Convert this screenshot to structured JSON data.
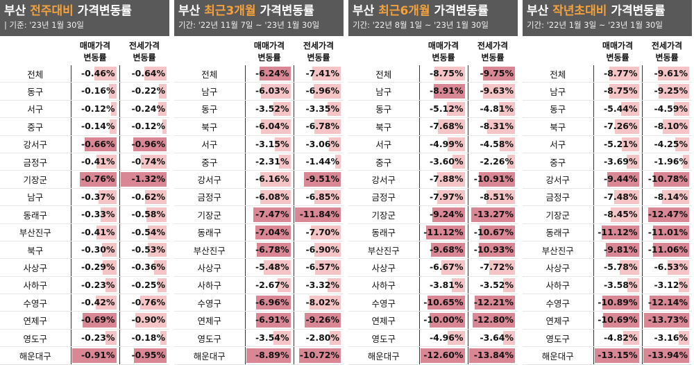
{
  "colors": {
    "header_bg": "#595959",
    "highlight": "#f4a23c",
    "bar_strong": "#d98695",
    "bar_light": "#f5c4c6"
  },
  "panels": [
    {
      "title_prefix": "부산 ",
      "title_highlight": "전주대비",
      "title_suffix": " 가격변동률",
      "period": "| 기준: '23년 1월 30일",
      "col_sale": "매매가격\n변동률",
      "col_rent": "전세가격\n변동률",
      "rows": [
        {
          "name": "전체",
          "sale": "-0.46%",
          "rent": "-0.64%",
          "sv": 0.46,
          "rv": 0.64
        },
        {
          "name": "동구",
          "sale": "-0.16%",
          "rent": "-0.22%",
          "sv": 0.16,
          "rv": 0.22
        },
        {
          "name": "서구",
          "sale": "-0.12%",
          "rent": "-0.24%",
          "sv": 0.12,
          "rv": 0.24
        },
        {
          "name": "중구",
          "sale": "-0.14%",
          "rent": "-0.12%",
          "sv": 0.14,
          "rv": 0.12
        },
        {
          "name": "강서구",
          "sale": "-0.66%",
          "rent": "-0.96%",
          "sv": 0.66,
          "rv": 0.96
        },
        {
          "name": "금정구",
          "sale": "-0.41%",
          "rent": "-0.74%",
          "sv": 0.41,
          "rv": 0.74
        },
        {
          "name": "기장군",
          "sale": "-0.76%",
          "rent": "-1.32%",
          "sv": 0.76,
          "rv": 1.32
        },
        {
          "name": "남구",
          "sale": "-0.37%",
          "rent": "-0.62%",
          "sv": 0.37,
          "rv": 0.62
        },
        {
          "name": "동래구",
          "sale": "-0.33%",
          "rent": "-0.58%",
          "sv": 0.33,
          "rv": 0.58
        },
        {
          "name": "부산진구",
          "sale": "-0.41%",
          "rent": "-0.54%",
          "sv": 0.41,
          "rv": 0.54
        },
        {
          "name": "북구",
          "sale": "-0.30%",
          "rent": "-0.53%",
          "sv": 0.3,
          "rv": 0.53
        },
        {
          "name": "사상구",
          "sale": "-0.29%",
          "rent": "-0.36%",
          "sv": 0.29,
          "rv": 0.36
        },
        {
          "name": "사하구",
          "sale": "-0.23%",
          "rent": "-0.25%",
          "sv": 0.23,
          "rv": 0.25
        },
        {
          "name": "수영구",
          "sale": "-0.42%",
          "rent": "-0.76%",
          "sv": 0.42,
          "rv": 0.76
        },
        {
          "name": "연제구",
          "sale": "-0.69%",
          "rent": "-0.90%",
          "sv": 0.69,
          "rv": 0.9
        },
        {
          "name": "영도구",
          "sale": "-0.23%",
          "rent": "-0.18%",
          "sv": 0.23,
          "rv": 0.18
        },
        {
          "name": "해운대구",
          "sale": "-0.91%",
          "rent": "-0.95%",
          "sv": 0.91,
          "rv": 0.95
        }
      ]
    },
    {
      "title_prefix": "부산 ",
      "title_highlight": "최근3개월",
      "title_suffix": " 가격변동률",
      "period": "기간: '22년 11월 7일 ~ '23년 1월 30일",
      "col_sale": "매매가격\n변동률",
      "col_rent": "전세가격\n변동률",
      "rows": [
        {
          "name": "전체",
          "sale": "-6.24%",
          "rent": "-7.41%",
          "sv": 6.24,
          "rv": 7.41
        },
        {
          "name": "남구",
          "sale": "-6.03%",
          "rent": "-6.96%",
          "sv": 6.03,
          "rv": 6.96
        },
        {
          "name": "동구",
          "sale": "-3.52%",
          "rent": "-3.35%",
          "sv": 3.52,
          "rv": 3.35
        },
        {
          "name": "북구",
          "sale": "-6.04%",
          "rent": "-6.78%",
          "sv": 6.04,
          "rv": 6.78
        },
        {
          "name": "서구",
          "sale": "-3.15%",
          "rent": "-3.06%",
          "sv": 3.15,
          "rv": 3.06
        },
        {
          "name": "중구",
          "sale": "-2.31%",
          "rent": "-1.44%",
          "sv": 2.31,
          "rv": 1.44
        },
        {
          "name": "강서구",
          "sale": "-6.16%",
          "rent": "-9.51%",
          "sv": 6.16,
          "rv": 9.51
        },
        {
          "name": "금정구",
          "sale": "-6.08%",
          "rent": "-6.85%",
          "sv": 6.08,
          "rv": 6.85
        },
        {
          "name": "기장군",
          "sale": "-7.47%",
          "rent": "-11.84%",
          "sv": 7.47,
          "rv": 11.84
        },
        {
          "name": "동래구",
          "sale": "-7.04%",
          "rent": "-7.70%",
          "sv": 7.04,
          "rv": 7.7
        },
        {
          "name": "부산진구",
          "sale": "-6.78%",
          "rent": "-6.90%",
          "sv": 6.78,
          "rv": 6.9
        },
        {
          "name": "사상구",
          "sale": "-5.48%",
          "rent": "-6.57%",
          "sv": 5.48,
          "rv": 6.57
        },
        {
          "name": "사하구",
          "sale": "-2.67%",
          "rent": "-3.32%",
          "sv": 2.67,
          "rv": 3.32
        },
        {
          "name": "수영구",
          "sale": "-6.96%",
          "rent": "-8.02%",
          "sv": 6.96,
          "rv": 8.02
        },
        {
          "name": "연제구",
          "sale": "-6.91%",
          "rent": "-9.26%",
          "sv": 6.91,
          "rv": 9.26
        },
        {
          "name": "영도구",
          "sale": "-3.54%",
          "rent": "-2.80%",
          "sv": 3.54,
          "rv": 2.8
        },
        {
          "name": "해운대구",
          "sale": "-8.89%",
          "rent": "-10.72%",
          "sv": 8.89,
          "rv": 10.72
        }
      ]
    },
    {
      "title_prefix": "부산 ",
      "title_highlight": "최근6개월",
      "title_suffix": " 가격변동률",
      "period": "기간: '22년 8월 1일 ~ '23년 1월 30일",
      "col_sale": "매매가격\n변동률",
      "col_rent": "전세가격\n변동률",
      "rows": [
        {
          "name": "전체",
          "sale": "-8.75%",
          "rent": "-9.75%",
          "sv": 8.75,
          "rv": 9.75
        },
        {
          "name": "남구",
          "sale": "-8.91%",
          "rent": "-9.63%",
          "sv": 8.91,
          "rv": 9.63
        },
        {
          "name": "동구",
          "sale": "-5.12%",
          "rent": "-4.81%",
          "sv": 5.12,
          "rv": 4.81
        },
        {
          "name": "북구",
          "sale": "-7.68%",
          "rent": "-8.31%",
          "sv": 7.68,
          "rv": 8.31
        },
        {
          "name": "서구",
          "sale": "-4.99%",
          "rent": "-4.58%",
          "sv": 4.99,
          "rv": 4.58
        },
        {
          "name": "중구",
          "sale": "-3.60%",
          "rent": "-2.26%",
          "sv": 3.6,
          "rv": 2.26
        },
        {
          "name": "강서구",
          "sale": "-7.88%",
          "rent": "-10.91%",
          "sv": 7.88,
          "rv": 10.91
        },
        {
          "name": "금정구",
          "sale": "-7.97%",
          "rent": "-8.51%",
          "sv": 7.97,
          "rv": 8.51
        },
        {
          "name": "기장군",
          "sale": "-9.24%",
          "rent": "-13.27%",
          "sv": 9.24,
          "rv": 13.27
        },
        {
          "name": "동래구",
          "sale": "-11.12%",
          "rent": "-10.67%",
          "sv": 11.12,
          "rv": 10.67
        },
        {
          "name": "부산진구",
          "sale": "-9.68%",
          "rent": "-10.93%",
          "sv": 9.68,
          "rv": 10.93
        },
        {
          "name": "사상구",
          "sale": "-6.67%",
          "rent": "-7.72%",
          "sv": 6.67,
          "rv": 7.72
        },
        {
          "name": "사하구",
          "sale": "-3.81%",
          "rent": "-3.52%",
          "sv": 3.81,
          "rv": 3.52
        },
        {
          "name": "수영구",
          "sale": "-10.65%",
          "rent": "-12.21%",
          "sv": 10.65,
          "rv": 12.21
        },
        {
          "name": "연제구",
          "sale": "-10.00%",
          "rent": "-12.80%",
          "sv": 10.0,
          "rv": 12.8
        },
        {
          "name": "영도구",
          "sale": "-4.96%",
          "rent": "-3.64%",
          "sv": 4.96,
          "rv": 3.64
        },
        {
          "name": "해운대구",
          "sale": "-12.60%",
          "rent": "-13.84%",
          "sv": 12.6,
          "rv": 13.84
        }
      ]
    },
    {
      "title_prefix": "부산 ",
      "title_highlight": "작년초대비",
      "title_suffix": " 가격변동률",
      "period": "기간: '22년 1월 3일 ~ '23년 1월 30일",
      "col_sale": "매매가격\n변동률",
      "col_rent": "전세가격\n변동률",
      "rows": [
        {
          "name": "전체",
          "sale": "-8.77%",
          "rent": "-9.61%",
          "sv": 8.77,
          "rv": 9.61
        },
        {
          "name": "남구",
          "sale": "-8.75%",
          "rent": "-9.25%",
          "sv": 8.75,
          "rv": 9.25
        },
        {
          "name": "동구",
          "sale": "-5.44%",
          "rent": "-4.59%",
          "sv": 5.44,
          "rv": 4.59
        },
        {
          "name": "북구",
          "sale": "-7.26%",
          "rent": "-8.10%",
          "sv": 7.26,
          "rv": 8.1
        },
        {
          "name": "서구",
          "sale": "-5.21%",
          "rent": "-4.25%",
          "sv": 5.21,
          "rv": 4.25
        },
        {
          "name": "중구",
          "sale": "-3.69%",
          "rent": "-1.96%",
          "sv": 3.69,
          "rv": 1.96
        },
        {
          "name": "강서구",
          "sale": "-9.44%",
          "rent": "-10.78%",
          "sv": 9.44,
          "rv": 10.78
        },
        {
          "name": "금정구",
          "sale": "-7.48%",
          "rent": "-8.14%",
          "sv": 7.48,
          "rv": 8.14
        },
        {
          "name": "기장군",
          "sale": "-8.45%",
          "rent": "-12.47%",
          "sv": 8.45,
          "rv": 12.47
        },
        {
          "name": "동래구",
          "sale": "-11.12%",
          "rent": "-11.01%",
          "sv": 11.12,
          "rv": 11.01
        },
        {
          "name": "부산진구",
          "sale": "-9.81%",
          "rent": "-11.06%",
          "sv": 9.81,
          "rv": 11.06
        },
        {
          "name": "사상구",
          "sale": "-5.78%",
          "rent": "-6.53%",
          "sv": 5.78,
          "rv": 6.53
        },
        {
          "name": "사하구",
          "sale": "-3.58%",
          "rent": "-3.12%",
          "sv": 3.58,
          "rv": 3.12
        },
        {
          "name": "수영구",
          "sale": "-10.89%",
          "rent": "-12.14%",
          "sv": 10.89,
          "rv": 12.14
        },
        {
          "name": "연제구",
          "sale": "-10.69%",
          "rent": "-13.73%",
          "sv": 10.69,
          "rv": 13.73
        },
        {
          "name": "영도구",
          "sale": "-4.82%",
          "rent": "-3.16%",
          "sv": 4.82,
          "rv": 3.16
        },
        {
          "name": "해운대구",
          "sale": "-13.15%",
          "rent": "-13.94%",
          "sv": 13.15,
          "rv": 13.94
        }
      ]
    }
  ]
}
